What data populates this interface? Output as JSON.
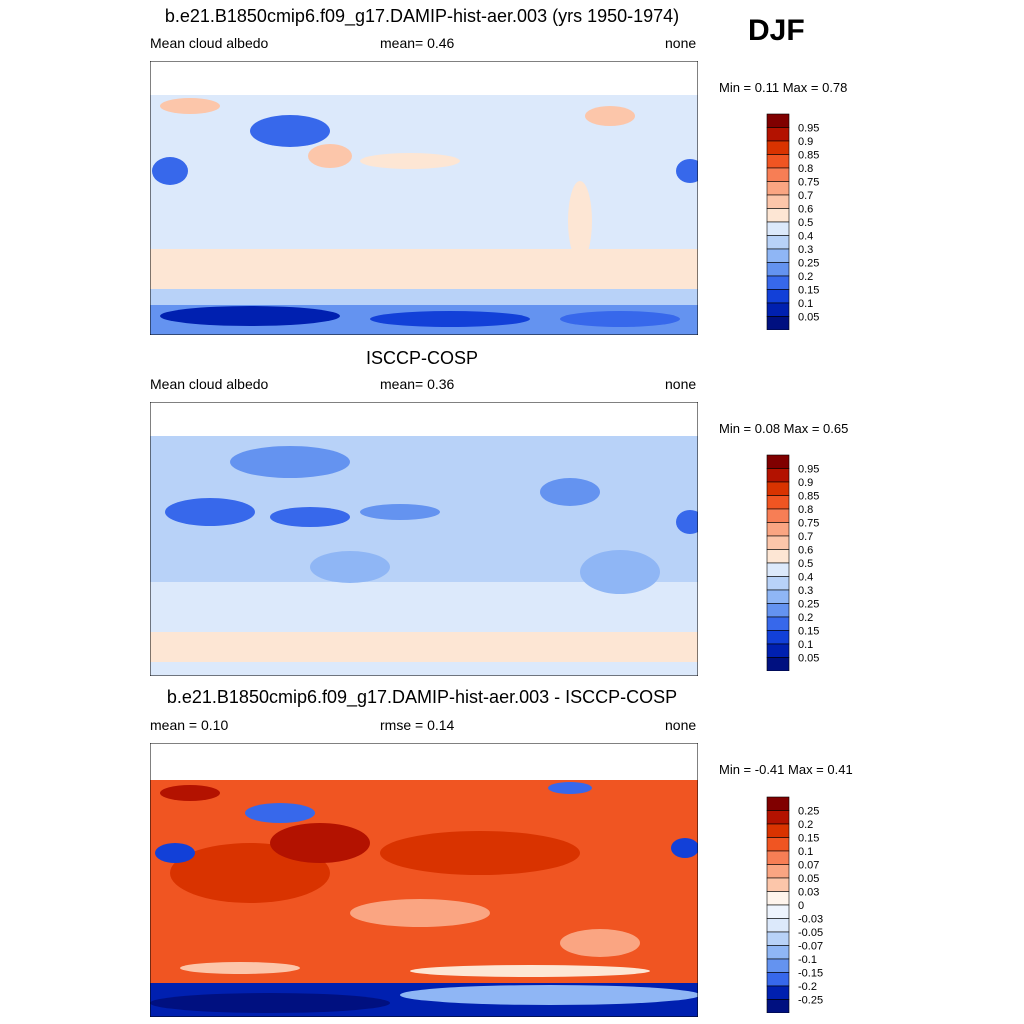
{
  "season": "DJF",
  "panels": [
    {
      "title": "b.e21.B1850cmip6.f09_g17.DAMIP-hist-aer.003 (yrs 1950-1974)",
      "left_label": "Mean cloud albedo",
      "center_label": "mean=   0.46",
      "right_label": "none",
      "minmax": "Min =   0.11 Max =   0.78",
      "colorbar": {
        "labels": [
          "0.95",
          "0.9",
          "0.85",
          "0.8",
          "0.75",
          "0.7",
          "0.6",
          "0.5",
          "0.4",
          "0.3",
          "0.25",
          "0.2",
          "0.15",
          "0.1",
          "0.05"
        ],
        "colors": [
          "#800000",
          "#b31200",
          "#d93300",
          "#f05522",
          "#f77e55",
          "#faa582",
          "#fcc6aa",
          "#fde6d4",
          "#dce9fb",
          "#b8d2f8",
          "#8fb6f5",
          "#6493f0",
          "#3768eb",
          "#1240d8",
          "#0020b0",
          "#001080"
        ]
      }
    },
    {
      "title": "ISCCP-COSP",
      "left_label": "Mean cloud albedo",
      "center_label": "mean=   0.36",
      "right_label": "none",
      "minmax": "Min =   0.08 Max =   0.65",
      "colorbar": {
        "labels": [
          "0.95",
          "0.9",
          "0.85",
          "0.8",
          "0.75",
          "0.7",
          "0.6",
          "0.5",
          "0.4",
          "0.3",
          "0.25",
          "0.2",
          "0.15",
          "0.1",
          "0.05"
        ],
        "colors": [
          "#800000",
          "#b31200",
          "#d93300",
          "#f05522",
          "#f77e55",
          "#faa582",
          "#fcc6aa",
          "#fde6d4",
          "#dce9fb",
          "#b8d2f8",
          "#8fb6f5",
          "#6493f0",
          "#3768eb",
          "#1240d8",
          "#0020b0",
          "#001080"
        ]
      }
    },
    {
      "title": "b.e21.B1850cmip6.f09_g17.DAMIP-hist-aer.003 - ISCCP-COSP",
      "left_label": "mean =   0.10",
      "center_label": "rmse =   0.14",
      "right_label": "none",
      "minmax": "Min =  -0.41 Max =   0.41",
      "colorbar": {
        "labels": [
          "0.25",
          "0.2",
          "0.15",
          "0.1",
          "0.07",
          "0.05",
          "0.03",
          "0",
          "-0.03",
          "-0.05",
          "-0.07",
          "-0.1",
          "-0.15",
          "-0.2",
          "-0.25"
        ],
        "colors": [
          "#800000",
          "#b31200",
          "#d93300",
          "#f05522",
          "#f77e55",
          "#faa582",
          "#fcc6aa",
          "#fef4ec",
          "#eef4fd",
          "#dce9fb",
          "#b8d2f8",
          "#8fb6f5",
          "#6493f0",
          "#3768eb",
          "#0020b0",
          "#001080"
        ]
      }
    }
  ],
  "chart_data": [
    {
      "type": "heatmap",
      "title": "b.e21.B1850cmip6.f09_g17.DAMIP-hist-aer.003 (yrs 1950-1974)",
      "variable": "Mean cloud albedo",
      "mean": 0.46,
      "min": 0.11,
      "max": 0.78,
      "units": "none",
      "levels": [
        0.05,
        0.1,
        0.15,
        0.2,
        0.25,
        0.3,
        0.4,
        0.5,
        0.6,
        0.7,
        0.75,
        0.8,
        0.85,
        0.9,
        0.95
      ]
    },
    {
      "type": "heatmap",
      "title": "ISCCP-COSP",
      "variable": "Mean cloud albedo",
      "mean": 0.36,
      "min": 0.08,
      "max": 0.65,
      "units": "none",
      "levels": [
        0.05,
        0.1,
        0.15,
        0.2,
        0.25,
        0.3,
        0.4,
        0.5,
        0.6,
        0.7,
        0.75,
        0.8,
        0.85,
        0.9,
        0.95
      ]
    },
    {
      "type": "heatmap",
      "title": "b.e21.B1850cmip6.f09_g17.DAMIP-hist-aer.003 - ISCCP-COSP",
      "mean": 0.1,
      "rmse": 0.14,
      "min": -0.41,
      "max": 0.41,
      "units": "none",
      "levels": [
        -0.25,
        -0.2,
        -0.15,
        -0.1,
        -0.07,
        -0.05,
        -0.03,
        0,
        0.03,
        0.05,
        0.07,
        0.1,
        0.15,
        0.2,
        0.25
      ]
    }
  ]
}
